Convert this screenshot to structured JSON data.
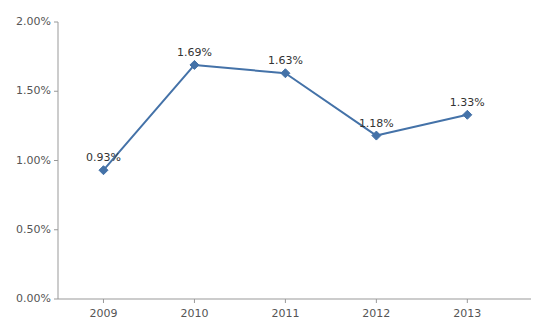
{
  "chart_data": {
    "type": "line",
    "x": [
      2009,
      2010,
      2011,
      2012,
      2013
    ],
    "values": [
      0.0093,
      0.0169,
      0.0163,
      0.0118,
      0.0133
    ],
    "value_labels": [
      "0.93%",
      "1.69%",
      "1.63%",
      "1.18%",
      "1.33%"
    ],
    "data_labels": true,
    "color": "#4472a8",
    "marker": "diamond",
    "xlim": [
      2008.5,
      2013.7
    ],
    "xticks": [
      2009,
      2010,
      2011,
      2012,
      2013
    ],
    "ylim": [
      0.0,
      0.02
    ],
    "yticks": [
      {
        "value": 0.0,
        "label": "0.00%"
      },
      {
        "value": 0.005,
        "label": "0.50%"
      },
      {
        "value": 0.01,
        "label": "1.00%"
      },
      {
        "value": 0.015,
        "label": "1.50%"
      },
      {
        "value": 0.02,
        "label": "2.00%"
      }
    ],
    "grid": false
  }
}
